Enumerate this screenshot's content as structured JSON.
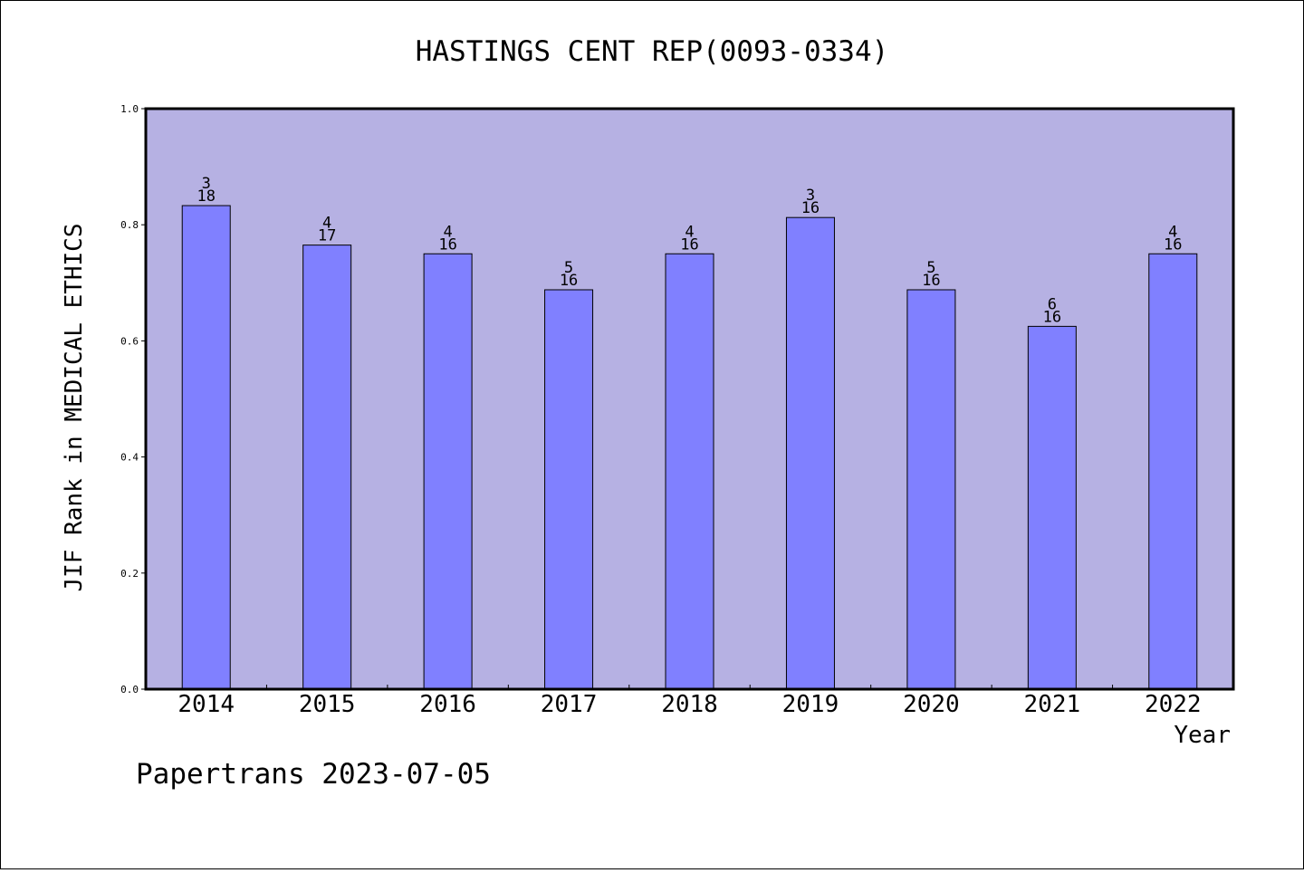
{
  "chart_data": {
    "type": "bar",
    "title": "HASTINGS CENT REP(0093-0334)",
    "xlabel": "Year",
    "ylabel": "JIF Rank in MEDICAL ETHICS",
    "ylim": [
      0,
      1.0
    ],
    "yticks": [
      "0.0",
      "0.2",
      "0.4",
      "0.6",
      "0.8",
      "1.0"
    ],
    "categories": [
      "2014",
      "2015",
      "2016",
      "2017",
      "2018",
      "2019",
      "2020",
      "2021",
      "2022"
    ],
    "values": [
      0.833,
      0.765,
      0.75,
      0.688,
      0.75,
      0.8125,
      0.688,
      0.625,
      0.75
    ],
    "rank_labels": [
      {
        "rank": "3",
        "total": "18"
      },
      {
        "rank": "4",
        "total": "17"
      },
      {
        "rank": "4",
        "total": "16"
      },
      {
        "rank": "5",
        "total": "16"
      },
      {
        "rank": "4",
        "total": "16"
      },
      {
        "rank": "3",
        "total": "16"
      },
      {
        "rank": "5",
        "total": "16"
      },
      {
        "rank": "6",
        "total": "16"
      },
      {
        "rank": "4",
        "total": "16"
      }
    ],
    "grid": false,
    "colors": {
      "plot_background": "#b6b1e3",
      "bar_fill": "#8080ff",
      "bar_stroke": "#000000"
    }
  },
  "footer": {
    "text": "Papertrans 2023-07-05"
  }
}
